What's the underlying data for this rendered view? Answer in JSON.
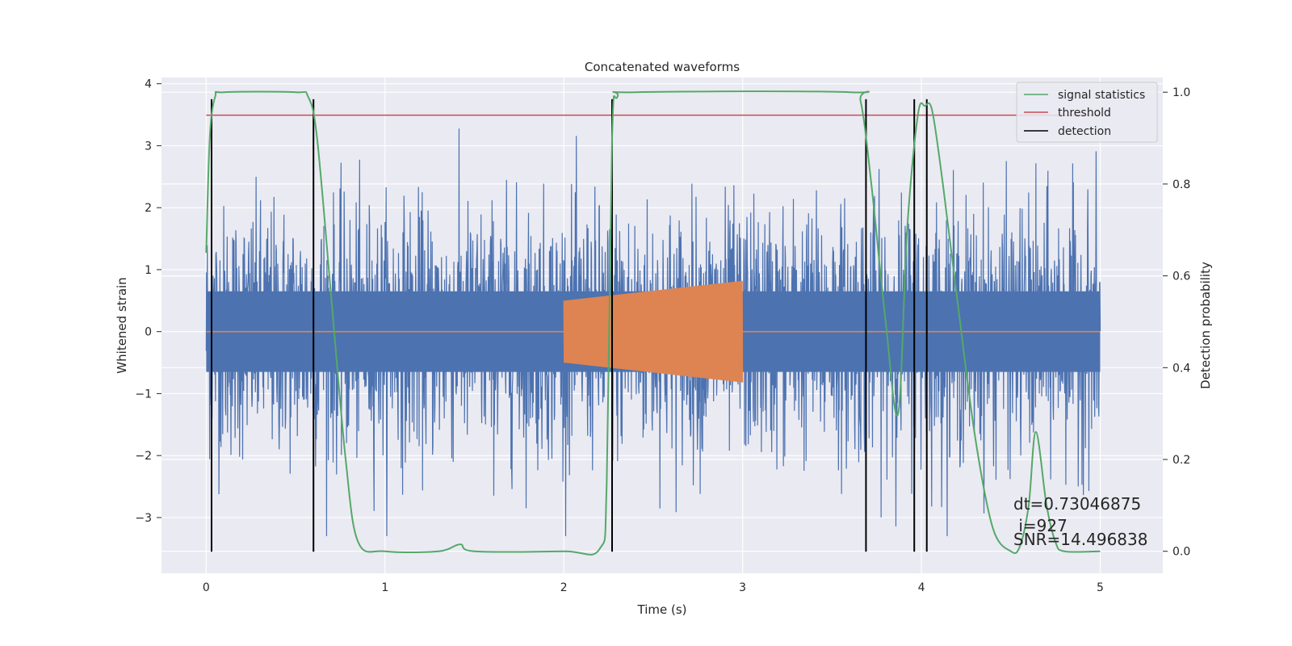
{
  "chart_data": {
    "type": "line",
    "title": "Concatenated waveforms",
    "xlabel": "Time (s)",
    "ylabel": "Whitened strain",
    "y2label": "Detection probability",
    "xlim": [
      -0.25,
      5.35
    ],
    "ylim": [
      -3.9,
      4.1
    ],
    "y2lim": [
      -0.048,
      1.032
    ],
    "xticks": [
      "0",
      "1",
      "2",
      "3",
      "4",
      "5"
    ],
    "yticks": [
      "−3",
      "−2",
      "−1",
      "0",
      "1",
      "2",
      "3",
      "4"
    ],
    "y2ticks": [
      "0.0",
      "0.2",
      "0.4",
      "0.6",
      "0.8",
      "1.0"
    ],
    "grid": true,
    "legend_position": "top-right",
    "series": [
      {
        "name": "strain",
        "axis": "left",
        "color": "#4c72b0",
        "style": "noise",
        "x_range": [
          0,
          5
        ],
        "core_amplitude": 0.65,
        "peak_range": [
          -3.3,
          3.75
        ]
      },
      {
        "name": "template",
        "axis": "left",
        "color": "#dd8452",
        "style": "chirp",
        "x_range": [
          2.0,
          3.0
        ],
        "amplitude_range": [
          0.5,
          0.82
        ]
      },
      {
        "name": "signal statistics",
        "axis": "right",
        "color": "#55a868",
        "x": [
          0.0,
          0.02,
          0.05,
          0.1,
          0.5,
          0.57,
          0.62,
          0.7,
          0.78,
          0.85,
          1.0,
          1.3,
          1.42,
          1.5,
          2.0,
          2.2,
          2.24,
          2.27,
          2.3,
          2.4,
          3.6,
          3.66,
          3.72,
          3.8,
          3.87,
          3.92,
          3.98,
          4.02,
          4.06,
          4.12,
          4.2,
          4.3,
          4.4,
          4.5,
          4.55,
          4.6,
          4.64,
          4.7,
          4.75,
          4.8,
          5.0
        ],
        "values": [
          0.65,
          0.9,
          0.99,
          1.0,
          1.0,
          0.99,
          0.9,
          0.55,
          0.2,
          0.02,
          0.0,
          0.0,
          0.015,
          0.0,
          0.0,
          0.005,
          0.15,
          0.9,
          0.99,
          1.0,
          1.0,
          0.98,
          0.8,
          0.5,
          0.3,
          0.7,
          0.95,
          0.97,
          0.96,
          0.8,
          0.55,
          0.25,
          0.05,
          0.0,
          0.01,
          0.1,
          0.26,
          0.1,
          0.02,
          0.0,
          0.0
        ]
      },
      {
        "name": "threshold",
        "axis": "right",
        "color": "#c44e52",
        "x": [
          0,
          5
        ],
        "values": [
          0.95,
          0.95
        ]
      },
      {
        "name": "detection",
        "axis": "left",
        "color": "#000000",
        "x": [
          0.03,
          0.6,
          2.27,
          3.69,
          3.96,
          4.03
        ],
        "y_range": [
          -3.55,
          3.75
        ]
      }
    ],
    "legend": [
      "signal statistics",
      "threshold",
      "detection"
    ],
    "annotation": {
      "lines": [
        "dt=0.73046875",
        " i=927",
        "SNR=14.496838"
      ]
    }
  }
}
